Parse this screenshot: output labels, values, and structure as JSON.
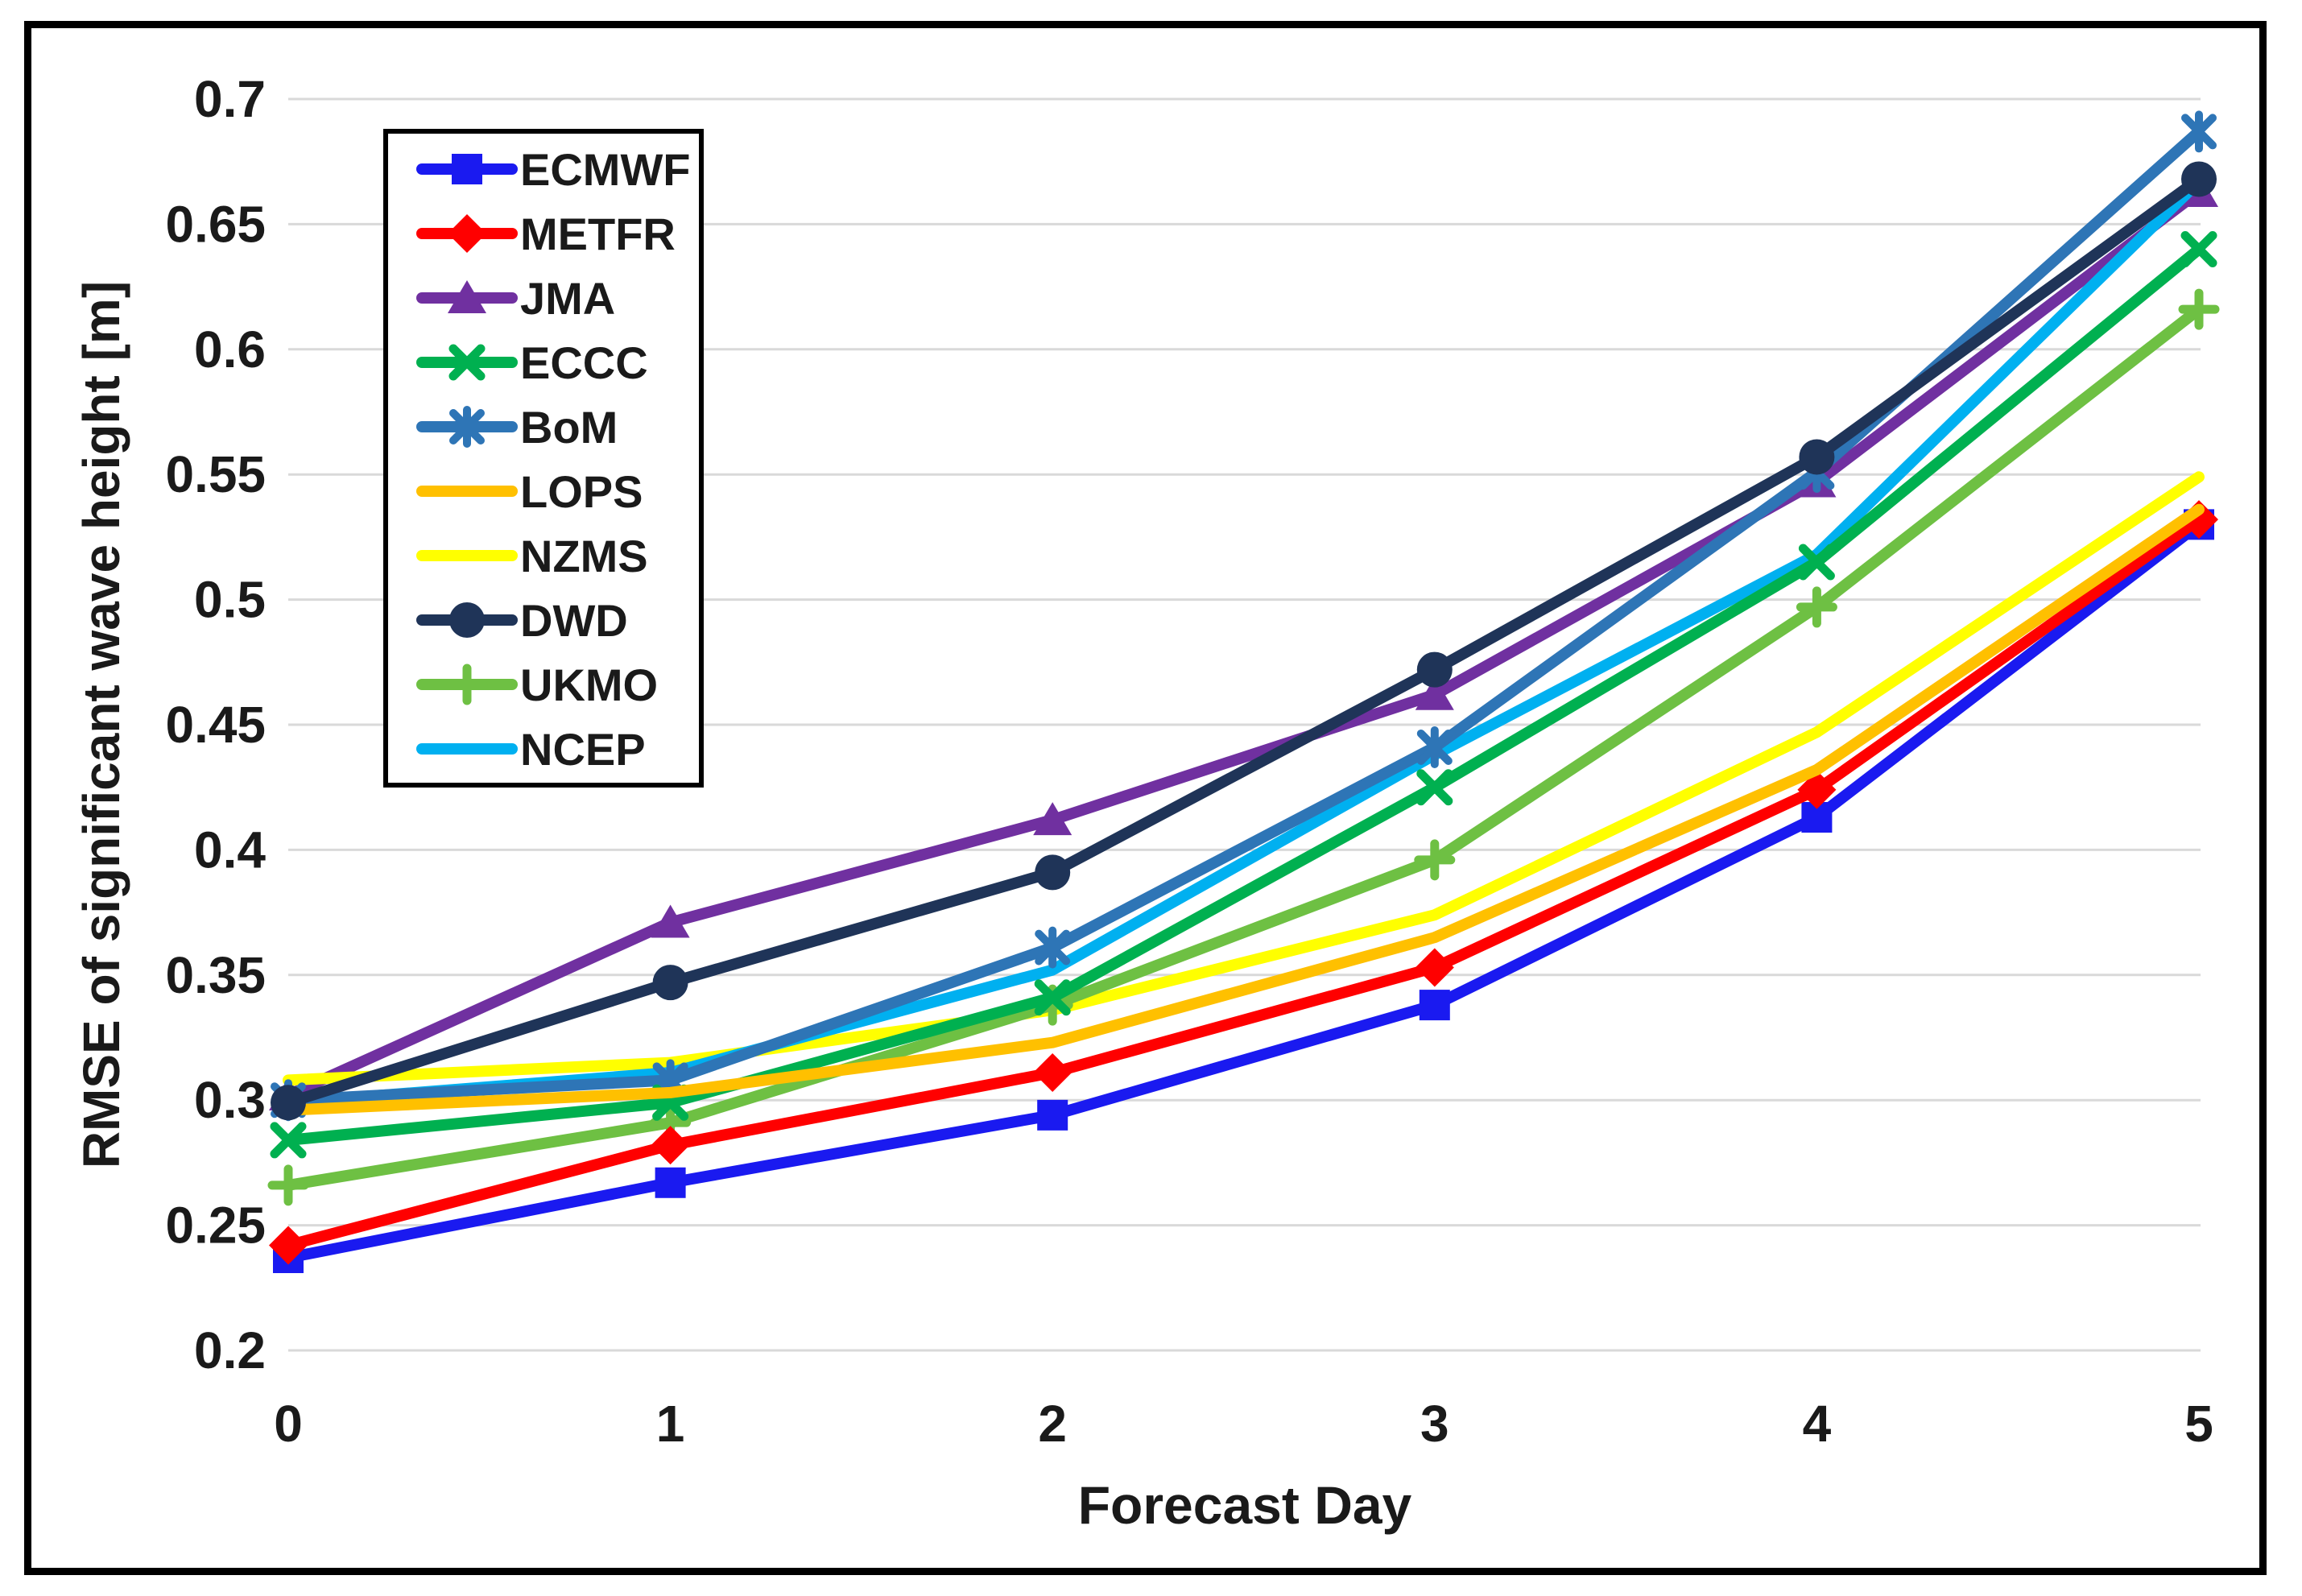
{
  "figure": {
    "background": "#FFFFFF",
    "frame_color": "#000000",
    "text_color": "#1A1A1A"
  },
  "chart_data": {
    "type": "line",
    "title": "",
    "xlabel": "Forecast Day",
    "ylabel": "RMSE of significant wave height [m]",
    "x": [
      0,
      1,
      2,
      3,
      4,
      5
    ],
    "xtick_labels": [
      "0",
      "1",
      "2",
      "3",
      "4",
      "5"
    ],
    "xlim": [
      0,
      5
    ],
    "ylim": [
      0.2,
      0.7
    ],
    "yticks": [
      {
        "label": "0.7",
        "value": 0.7
      },
      {
        "label": "0.65",
        "value": 0.65
      },
      {
        "label": "0.6",
        "value": 0.6
      },
      {
        "label": "0.55",
        "value": 0.55
      },
      {
        "label": "0.5",
        "value": 0.5
      },
      {
        "label": "0.45",
        "value": 0.45
      },
      {
        "label": "0.4",
        "value": 0.4
      },
      {
        "label": "0.35",
        "value": 0.35
      },
      {
        "label": "0.3",
        "value": 0.3
      },
      {
        "label": "0.25",
        "value": 0.25
      },
      {
        "label": "0.2",
        "value": 0.2
      }
    ],
    "grid": "horizontal",
    "grid_color": "#D9D9D9",
    "legend_position": "upper-left-inside",
    "series": [
      {
        "name": "ECMWF",
        "color": "#1A1AF0",
        "marker": "square",
        "values": [
          0.237,
          0.267,
          0.294,
          0.338,
          0.413,
          0.53
        ]
      },
      {
        "name": "METFR",
        "color": "#FF0000",
        "marker": "diamond",
        "values": [
          0.242,
          0.282,
          0.311,
          0.353,
          0.424,
          0.532
        ]
      },
      {
        "name": "JMA",
        "color": "#7030A0",
        "marker": "triangle",
        "values": [
          0.302,
          0.371,
          0.412,
          0.462,
          0.547,
          0.663
        ]
      },
      {
        "name": "ECCC",
        "color": "#00B050",
        "marker": "x",
        "values": [
          0.284,
          0.299,
          0.341,
          0.425,
          0.515,
          0.64
        ]
      },
      {
        "name": "BoM",
        "color": "#2E75B6",
        "marker": "star",
        "values": [
          0.3,
          0.308,
          0.361,
          0.441,
          0.551,
          0.687
        ]
      },
      {
        "name": "LOPS",
        "color": "#FFC000",
        "marker": "none",
        "values": [
          0.296,
          0.303,
          0.323,
          0.365,
          0.432,
          0.536
        ]
      },
      {
        "name": "NZMS",
        "color": "#FFFF00",
        "marker": "none",
        "values": [
          0.308,
          0.315,
          0.336,
          0.374,
          0.447,
          0.549
        ]
      },
      {
        "name": "DWD",
        "color": "#1F3458",
        "marker": "circle",
        "values": [
          0.299,
          0.347,
          0.391,
          0.472,
          0.557,
          0.668
        ]
      },
      {
        "name": "UKMO",
        "color": "#6EC043",
        "marker": "plus",
        "values": [
          0.266,
          0.291,
          0.338,
          0.396,
          0.497,
          0.616
        ]
      },
      {
        "name": "NCEP",
        "color": "#00B0F0",
        "marker": "none",
        "values": [
          0.299,
          0.311,
          0.352,
          0.438,
          0.518,
          0.667
        ]
      }
    ]
  }
}
